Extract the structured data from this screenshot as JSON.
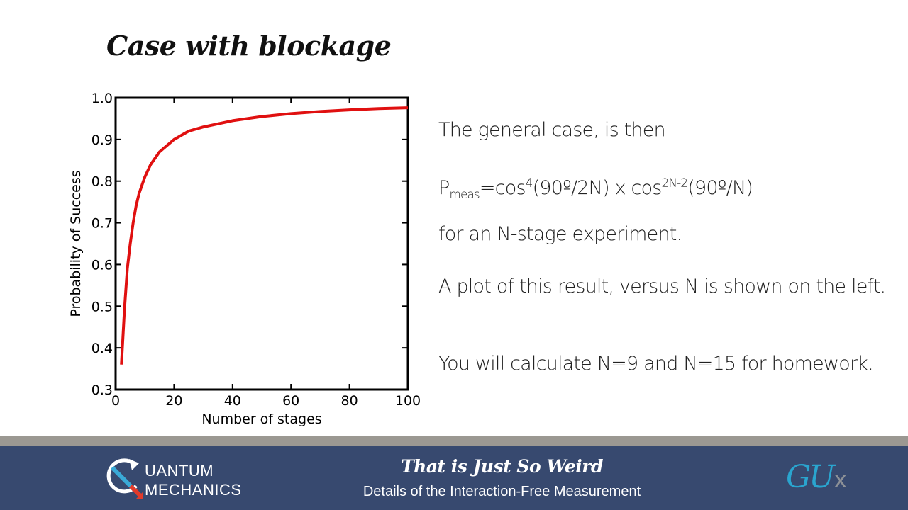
{
  "slide": {
    "title": "Case with blockage"
  },
  "content": {
    "line1": "The general case, is then",
    "formula": {
      "p": "P",
      "sub": "meas",
      "eq_cos": "=cos",
      "sup1": "4",
      "arg1": "(90º/2N) x cos",
      "sup2": "2N-2",
      "arg2": "(90º/N)"
    },
    "line3": "for an N-stage experiment.",
    "line4": "A plot of this result, versus N is shown on the left.",
    "line5": "You will calculate N=9 and N=15 for homework."
  },
  "footer": {
    "logo_line1": "UANTUM",
    "logo_line2": "MECHANICS",
    "title": "That is Just So Weird",
    "subtitle": "Details of the Interaction-Free Measurement",
    "gux_main": "GU",
    "gux_x": "x",
    "bg_color": "#37496f",
    "separator_color": "#9b9892"
  },
  "chart_data": {
    "type": "line",
    "title": "",
    "xlabel": "Number of stages",
    "ylabel": "Probability of Success",
    "xlim": [
      0,
      100
    ],
    "ylim": [
      0.3,
      1.0
    ],
    "xticks": [
      0,
      20,
      40,
      60,
      80,
      100
    ],
    "yticks": [
      0.3,
      0.4,
      0.5,
      0.6,
      0.7,
      0.8,
      0.9,
      1.0
    ],
    "xtick_labels": [
      "0",
      "20",
      "40",
      "60",
      "80",
      "100"
    ],
    "ytick_labels": [
      "0.3",
      "0.4",
      "0.5",
      "0.6",
      "0.7",
      "0.8",
      "0.9",
      "1.0"
    ],
    "grid": false,
    "line_color": "#e01010",
    "series": [
      {
        "x": [
          2,
          3,
          4,
          5,
          6,
          7,
          8,
          10,
          12,
          15,
          20,
          25,
          30,
          40,
          50,
          60,
          70,
          80,
          90,
          100
        ],
        "y": [
          0.36,
          0.49,
          0.59,
          0.65,
          0.7,
          0.74,
          0.77,
          0.81,
          0.84,
          0.87,
          0.9,
          0.92,
          0.93,
          0.945,
          0.955,
          0.962,
          0.967,
          0.971,
          0.974,
          0.976
        ]
      }
    ]
  }
}
